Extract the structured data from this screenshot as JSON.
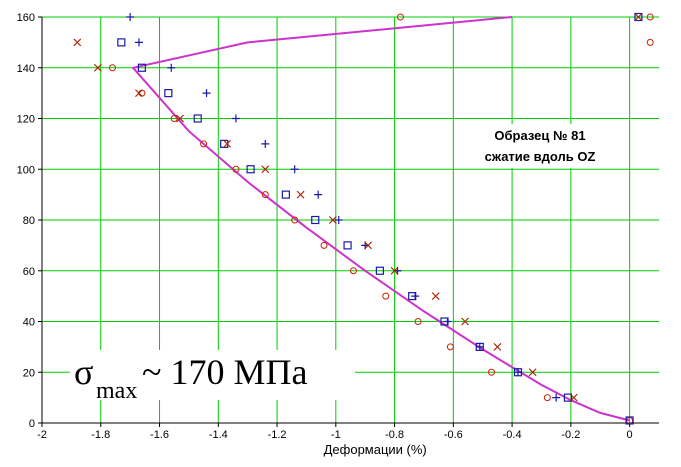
{
  "chart_data": {
    "type": "scatter",
    "title": "",
    "xlabel": "Деформации (%)",
    "ylabel": "",
    "xlim": [
      -2,
      0.1
    ],
    "ylim": [
      0,
      160
    ],
    "grid": true,
    "x_ticks": [
      "-2",
      "-1.8",
      "-1.6",
      "-1.4",
      "-1.2",
      "-1",
      "-0.8",
      "-0.6",
      "-0.4",
      "-0.2",
      "0"
    ],
    "x_tick_values": [
      -2,
      -1.8,
      -1.6,
      -1.4,
      -1.2,
      -1,
      -0.8,
      -0.6,
      -0.4,
      -0.2,
      0
    ],
    "y_ticks": [
      "0",
      "20",
      "40",
      "60",
      "80",
      "100",
      "120",
      "140",
      "160"
    ],
    "y_tick_values": [
      0,
      20,
      40,
      60,
      80,
      100,
      120,
      140,
      160
    ],
    "annotations": {
      "sample_line1": "Образец № 81",
      "sample_line2": "сжатие вдоль OZ",
      "sigma_symbol": "σ",
      "sigma_sub": "max",
      "sigma_value": " ~ 170 МПа"
    },
    "series": [
      {
        "marker": "circle",
        "color": "#cc2200",
        "points": [
          [
            -0.78,
            160
          ],
          [
            0.07,
            160
          ],
          [
            0.07,
            150
          ],
          [
            -1.76,
            140
          ],
          [
            -1.66,
            130
          ],
          [
            -1.55,
            120
          ],
          [
            -1.45,
            110
          ],
          [
            -1.34,
            100
          ],
          [
            -1.24,
            90
          ],
          [
            -1.14,
            80
          ],
          [
            -1.04,
            70
          ],
          [
            -0.94,
            60
          ],
          [
            -0.83,
            50
          ],
          [
            -0.72,
            40
          ],
          [
            -0.61,
            30
          ],
          [
            -0.47,
            20
          ],
          [
            -0.28,
            10
          ],
          [
            0,
            1
          ]
        ]
      },
      {
        "marker": "square",
        "color": "#1a1aaa",
        "points": [
          [
            -1.73,
            150
          ],
          [
            0.03,
            160
          ],
          [
            -1.66,
            140
          ],
          [
            -1.57,
            130
          ],
          [
            -1.47,
            120
          ],
          [
            -1.38,
            110
          ],
          [
            -1.29,
            100
          ],
          [
            -1.17,
            90
          ],
          [
            -1.07,
            80
          ],
          [
            -0.96,
            70
          ],
          [
            -0.85,
            60
          ],
          [
            -0.74,
            50
          ],
          [
            -0.63,
            40
          ],
          [
            -0.51,
            30
          ],
          [
            -0.38,
            20
          ],
          [
            -0.21,
            10
          ],
          [
            0,
            1
          ]
        ]
      },
      {
        "marker": "plus",
        "color": "#1a1aaa",
        "points": [
          [
            -1.7,
            160
          ],
          [
            -1.67,
            150
          ],
          [
            -1.56,
            140
          ],
          [
            -1.44,
            130
          ],
          [
            -1.34,
            120
          ],
          [
            -1.24,
            110
          ],
          [
            -1.14,
            100
          ],
          [
            -1.06,
            90
          ],
          [
            -0.99,
            80
          ],
          [
            -0.9,
            70
          ],
          [
            -0.79,
            60
          ],
          [
            -0.73,
            50
          ],
          [
            -0.62,
            40
          ],
          [
            -0.51,
            30
          ],
          [
            -0.38,
            20
          ],
          [
            -0.25,
            10
          ]
        ]
      },
      {
        "marker": "x",
        "color": "#aa2200",
        "points": [
          [
            -1.88,
            150
          ],
          [
            0.03,
            160
          ],
          [
            -1.81,
            140
          ],
          [
            -1.67,
            130
          ],
          [
            -1.53,
            120
          ],
          [
            -1.37,
            110
          ],
          [
            -1.24,
            100
          ],
          [
            -1.12,
            90
          ],
          [
            -1.01,
            80
          ],
          [
            -0.89,
            70
          ],
          [
            -0.8,
            60
          ],
          [
            -0.66,
            50
          ],
          [
            -0.56,
            40
          ],
          [
            -0.45,
            30
          ],
          [
            -0.33,
            20
          ],
          [
            -0.19,
            10
          ]
        ]
      }
    ],
    "fit_line": {
      "color": "#cc33cc",
      "points": [
        [
          0,
          1
        ],
        [
          -0.1,
          4
        ],
        [
          -0.2,
          9
        ],
        [
          -0.3,
          15
        ],
        [
          -0.5,
          29
        ],
        [
          -0.7,
          44
        ],
        [
          -0.9,
          60
        ],
        [
          -1.1,
          77
        ],
        [
          -1.3,
          95
        ],
        [
          -1.5,
          115
        ],
        [
          -1.69,
          140
        ],
        [
          -1.3,
          150
        ],
        [
          -0.4,
          160
        ]
      ]
    }
  }
}
